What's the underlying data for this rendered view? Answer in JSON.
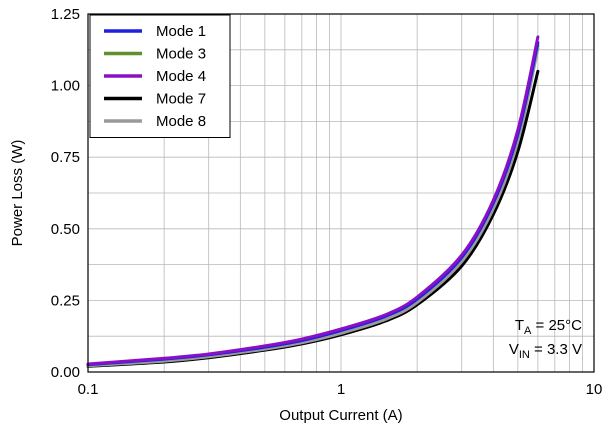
{
  "chart_data": {
    "type": "line",
    "xscale": "log",
    "xlim": [
      0.1,
      10
    ],
    "ylim": [
      0,
      1.25
    ],
    "grid": true,
    "legend_position": "top-left",
    "xlabel": "Output Current (A)",
    "ylabel": "Power Loss (W)",
    "x_ticks": [
      {
        "value": 0.1,
        "label": "0.1"
      },
      {
        "value": 1,
        "label": "1"
      },
      {
        "value": 10,
        "label": "10"
      }
    ],
    "y_ticks": [
      {
        "value": 0,
        "label": "0.00"
      },
      {
        "value": 0.25,
        "label": "0.25"
      },
      {
        "value": 0.5,
        "label": "0.50"
      },
      {
        "value": 0.75,
        "label": "0.75"
      },
      {
        "value": 1.0,
        "label": "1.00"
      },
      {
        "value": 1.25,
        "label": "1.25"
      }
    ],
    "annotation": {
      "line1": {
        "main": "T",
        "sub": "A",
        "rest": " = 25°C"
      },
      "line2": {
        "main": "V",
        "sub": "IN",
        "rest": " = 3.3 V"
      }
    },
    "x": [
      0.1,
      0.2,
      0.3,
      0.5,
      0.7,
      1.0,
      1.5,
      2.0,
      3.0,
      4.0,
      5.0,
      6.0
    ],
    "series": [
      {
        "name": "Mode 1",
        "color": "#1f1fe0",
        "values": [
          0.026,
          0.045,
          0.06,
          0.087,
          0.11,
          0.145,
          0.195,
          0.255,
          0.4,
          0.59,
          0.83,
          1.15
        ]
      },
      {
        "name": "Mode 3",
        "color": "#5f8f2f",
        "values": [
          0.022,
          0.04,
          0.055,
          0.082,
          0.104,
          0.138,
          0.188,
          0.248,
          0.392,
          0.58,
          0.82,
          1.14
        ]
      },
      {
        "name": "Mode 4",
        "color": "#8a10c8",
        "values": [
          0.028,
          0.048,
          0.063,
          0.091,
          0.115,
          0.15,
          0.2,
          0.262,
          0.408,
          0.6,
          0.845,
          1.17
        ]
      },
      {
        "name": "Mode 7",
        "color": "#000000",
        "values": [
          0.02,
          0.035,
          0.05,
          0.076,
          0.098,
          0.13,
          0.178,
          0.235,
          0.37,
          0.55,
          0.77,
          1.05
        ]
      },
      {
        "name": "Mode 8",
        "color": "#9a9a9a",
        "values": [
          0.022,
          0.038,
          0.053,
          0.08,
          0.102,
          0.135,
          0.184,
          0.243,
          0.385,
          0.57,
          0.805,
          1.13
        ]
      }
    ]
  }
}
